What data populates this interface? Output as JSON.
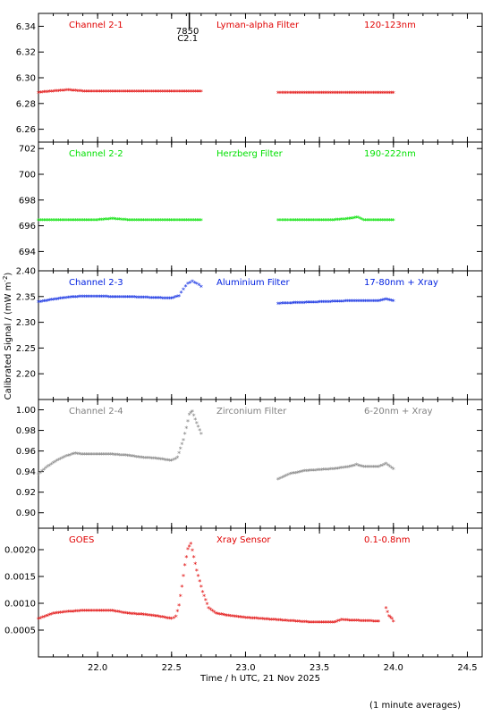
{
  "x_axis": {
    "label": "Time / h UTC, 21 Nov 2025",
    "range": [
      21.6,
      24.6
    ],
    "ticks": [
      22.0,
      22.5,
      23.0,
      23.5,
      24.0,
      24.5
    ],
    "tick_labels": [
      "22.0",
      "22.5",
      "23.0",
      "23.5",
      "24.0",
      "24.5"
    ]
  },
  "y_axis_label": "Calibrated Signal / (mW m",
  "y_axis_label_sup": "-2",
  "y_axis_label_close": ")",
  "footnote": "(1 minute averages)",
  "orbit_marker": {
    "x": 22.62,
    "line1": "7850",
    "line2": "C2.1"
  },
  "chart_data": [
    {
      "type": "scatter",
      "channel": "Channel 2-1",
      "filter": "Lyman-alpha Filter",
      "band": "120-123nm",
      "color": "#e00000",
      "ylim": [
        6.25,
        6.35
      ],
      "yticks": [
        6.26,
        6.28,
        6.3,
        6.32,
        6.34
      ],
      "ytick_labels": [
        "6.26",
        "6.28",
        "6.30",
        "6.32",
        "6.34"
      ],
      "segments": [
        {
          "x": [
            21.6,
            21.7,
            21.8,
            21.9,
            22.0,
            22.1,
            22.2,
            22.3,
            22.4,
            22.5,
            22.6,
            22.7
          ],
          "y": [
            6.288,
            6.289,
            6.29,
            6.289,
            6.289,
            6.289,
            6.289,
            6.289,
            6.289,
            6.289,
            6.289,
            6.289
          ]
        },
        {
          "x": [
            23.22,
            23.3,
            23.4,
            23.5,
            23.6,
            23.7,
            23.8,
            23.9,
            24.0
          ],
          "y": [
            6.288,
            6.288,
            6.288,
            6.288,
            6.288,
            6.288,
            6.288,
            6.288,
            6.288
          ]
        }
      ]
    },
    {
      "type": "scatter",
      "channel": "Channel 2-2",
      "filter": "Herzberg Filter",
      "band": "190-222nm",
      "color": "#00e000",
      "ylim": [
        692.5,
        702.5
      ],
      "yticks": [
        694,
        696,
        698,
        700,
        702
      ],
      "ytick_labels": [
        "694",
        "696",
        "698",
        "700",
        "702"
      ],
      "segments": [
        {
          "x": [
            21.6,
            21.7,
            21.8,
            21.9,
            22.0,
            22.1,
            22.2,
            22.3,
            22.4,
            22.5,
            22.6,
            22.7
          ],
          "y": [
            696.4,
            696.4,
            696.4,
            696.4,
            696.4,
            696.5,
            696.4,
            696.4,
            696.4,
            696.4,
            696.4,
            696.4
          ]
        },
        {
          "x": [
            23.22,
            23.3,
            23.4,
            23.5,
            23.6,
            23.7,
            23.76,
            23.8,
            23.9,
            24.0
          ],
          "y": [
            696.4,
            696.4,
            696.4,
            696.4,
            696.4,
            696.5,
            696.6,
            696.4,
            696.4,
            696.4
          ]
        }
      ]
    },
    {
      "type": "scatter",
      "channel": "Channel 2-3",
      "filter": "Aluminium Filter",
      "band": "17-80nm + Xray",
      "color": "#0020e0",
      "ylim": [
        2.15,
        2.4
      ],
      "yticks": [
        2.2,
        2.25,
        2.3,
        2.35,
        2.4
      ],
      "ytick_labels": [
        "2.20",
        "2.25",
        "2.30",
        "2.35",
        "2.40"
      ],
      "segments": [
        {
          "x": [
            21.6,
            21.7,
            21.8,
            21.9,
            22.0,
            22.1,
            22.2,
            22.3,
            22.4,
            22.5,
            22.55,
            22.58,
            22.61,
            22.64,
            22.67,
            22.7
          ],
          "y": [
            2.338,
            2.343,
            2.347,
            2.349,
            2.349,
            2.348,
            2.348,
            2.347,
            2.346,
            2.345,
            2.35,
            2.363,
            2.374,
            2.378,
            2.374,
            2.368
          ]
        },
        {
          "x": [
            23.22,
            23.3,
            23.4,
            23.5,
            23.6,
            23.7,
            23.8,
            23.9,
            23.95,
            24.0
          ],
          "y": [
            2.335,
            2.336,
            2.337,
            2.338,
            2.339,
            2.34,
            2.34,
            2.34,
            2.344,
            2.34
          ]
        }
      ]
    },
    {
      "type": "scatter",
      "channel": "Channel 2-4",
      "filter": "Zirconium Filter",
      "band": "6-20nm + Xray",
      "color": "#808080",
      "ylim": [
        0.885,
        1.01
      ],
      "yticks": [
        0.9,
        0.92,
        0.94,
        0.96,
        0.98,
        1.0
      ],
      "ytick_labels": [
        "0.90",
        "0.92",
        "0.94",
        "0.96",
        "0.98",
        "1.00"
      ],
      "segments": [
        {
          "x": [
            21.6,
            21.65,
            21.7,
            21.75,
            21.8,
            21.85,
            21.9,
            22.0,
            22.1,
            22.2,
            22.3,
            22.4,
            22.5,
            22.54,
            22.56,
            22.58,
            22.6,
            22.62,
            22.64,
            22.66,
            22.68,
            22.7
          ],
          "y": [
            0.937,
            0.943,
            0.948,
            0.952,
            0.955,
            0.957,
            0.956,
            0.956,
            0.956,
            0.955,
            0.953,
            0.952,
            0.95,
            0.953,
            0.962,
            0.97,
            0.982,
            0.995,
            0.998,
            0.99,
            0.983,
            0.976
          ]
        },
        {
          "x": [
            23.22,
            23.3,
            23.4,
            23.5,
            23.6,
            23.7,
            23.75,
            23.8,
            23.9,
            23.95,
            24.0
          ],
          "y": [
            0.932,
            0.937,
            0.94,
            0.941,
            0.942,
            0.944,
            0.946,
            0.944,
            0.944,
            0.947,
            0.942
          ]
        }
      ]
    },
    {
      "type": "scatter",
      "channel": "GOES",
      "filter": "Xray Sensor",
      "band": "0.1-0.8nm",
      "color": "#e00000",
      "ylim": [
        0.0,
        0.0024
      ],
      "yticks": [
        0.0005,
        0.001,
        0.0015,
        0.002
      ],
      "ytick_labels": [
        "0.0005",
        "0.0010",
        "0.0015",
        "0.0020"
      ],
      "segments": [
        {
          "x": [
            21.6,
            21.7,
            21.8,
            21.9,
            22.0,
            22.1,
            22.2,
            22.3,
            22.4,
            22.5,
            22.53,
            22.55,
            22.57,
            22.59,
            22.61,
            22.63,
            22.65,
            22.67,
            22.69,
            22.71,
            22.73,
            22.75,
            22.8,
            22.9,
            23.0,
            23.1,
            23.2,
            23.3,
            23.4,
            23.5,
            23.6,
            23.65,
            23.7,
            23.8,
            23.9
          ],
          "y": [
            0.0007,
            0.0008,
            0.00083,
            0.00085,
            0.00085,
            0.00085,
            0.0008,
            0.00078,
            0.00075,
            0.0007,
            0.00074,
            0.00095,
            0.0013,
            0.0017,
            0.002,
            0.0021,
            0.00185,
            0.0016,
            0.0014,
            0.0012,
            0.00105,
            0.0009,
            0.0008,
            0.00075,
            0.00072,
            0.0007,
            0.00068,
            0.00066,
            0.00064,
            0.00063,
            0.00063,
            0.00068,
            0.00067,
            0.00066,
            0.00065
          ]
        },
        {
          "x": [
            23.95,
            23.97,
            23.99,
            24.0
          ],
          "y": [
            0.0009,
            0.00075,
            0.0007,
            0.00065
          ]
        }
      ]
    }
  ]
}
